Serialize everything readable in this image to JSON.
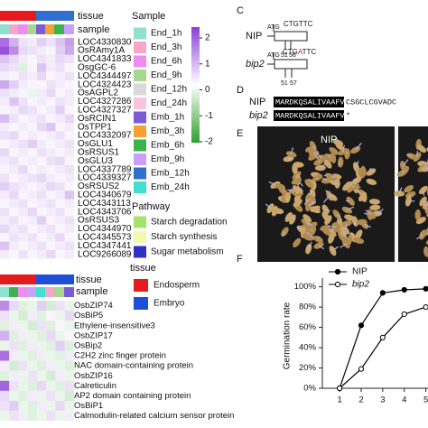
{
  "top_heatmap": {
    "tissue_label": "tissue",
    "sample_label": "sample",
    "rows": [
      "LOC4330830",
      "OsRAmy1A",
      "LOC4341833",
      "OsgGC-6",
      "LOC4344497",
      "LOC4324423",
      "OsAGPL2",
      "LOC4327286",
      "LOC4327327",
      "OsRCIN1",
      "OsTPP1",
      "LOC4332097",
      "OsGLU1",
      "OsRSUS1",
      "OsGLU3",
      "LOC4337789",
      "LOC4339327",
      "OsRSUS2",
      "LOC4340679",
      "LOC4343113",
      "LOC4343706",
      "OsRSUS3",
      "LOC4344970",
      "LOC4345573",
      "LOC4347441",
      "LOC9266089"
    ],
    "values": [
      [
        1.5,
        0.8,
        0.3,
        0.2,
        0.5,
        0.3,
        0.6,
        1.0
      ],
      [
        1.8,
        1.2,
        0.4,
        0.3,
        0.2,
        0.1,
        0.5,
        0.9
      ],
      [
        0.6,
        0.4,
        0.2,
        0.1,
        0.3,
        0.2,
        0.4,
        0.3
      ],
      [
        0.4,
        0.3,
        -0.3,
        0.1,
        0.6,
        0.2,
        0.3,
        0.1
      ],
      [
        0.2,
        0.1,
        0.3,
        0.2,
        0.4,
        0.1,
        0.2,
        0.3
      ],
      [
        0.9,
        0.5,
        0.2,
        0.1,
        0.1,
        0.3,
        0.2,
        0.1
      ],
      [
        0.3,
        0.2,
        0.1,
        -0.2,
        0.2,
        0.4,
        0.1,
        0.2
      ],
      [
        0.2,
        0.6,
        0.3,
        0.1,
        0.2,
        0.1,
        0.3,
        0.2
      ],
      [
        0.1,
        0.2,
        0.4,
        0.3,
        0.1,
        0.2,
        0.5,
        0.1
      ],
      [
        0.7,
        0.3,
        0.1,
        0.2,
        0.3,
        0.1,
        0.2,
        0.4
      ],
      [
        0.2,
        0.1,
        0.2,
        0.1,
        0.4,
        0.6,
        0.1,
        0.2
      ],
      [
        0.3,
        0.4,
        0.1,
        0.2,
        0.1,
        0.2,
        0.3,
        0.1
      ],
      [
        0.1,
        0.2,
        0.3,
        0.5,
        0.2,
        0.1,
        0.2,
        0.3
      ],
      [
        0.4,
        0.1,
        0.2,
        0.1,
        0.3,
        0.2,
        0.1,
        0.2
      ],
      [
        0.2,
        0.3,
        0.1,
        0.2,
        0.1,
        0.3,
        0.4,
        0.1
      ],
      [
        0.1,
        0.2,
        0.4,
        0.1,
        0.2,
        0.1,
        0.2,
        0.3
      ],
      [
        0.3,
        0.1,
        0.2,
        0.3,
        0.4,
        0.2,
        0.1,
        0.2
      ],
      [
        0.5,
        0.3,
        0.2,
        0.1,
        0.2,
        0.4,
        0.3,
        0.1
      ],
      [
        0.2,
        0.4,
        0.1,
        0.2,
        0.3,
        0.1,
        0.2,
        0.6
      ],
      [
        0.1,
        0.2,
        0.3,
        0.1,
        0.2,
        0.3,
        0.1,
        0.2
      ],
      [
        0.3,
        0.1,
        0.2,
        0.4,
        0.1,
        0.2,
        0.3,
        0.1
      ],
      [
        0.2,
        0.3,
        0.1,
        0.2,
        0.5,
        0.1,
        0.2,
        0.3
      ],
      [
        0.4,
        0.2,
        0.3,
        0.1,
        0.2,
        0.3,
        0.1,
        0.2
      ],
      [
        0.1,
        0.3,
        0.2,
        0.3,
        0.1,
        0.2,
        0.4,
        0.1
      ],
      [
        0.6,
        0.2,
        0.1,
        0.2,
        0.3,
        0.1,
        0.2,
        0.3
      ],
      [
        0.2,
        0.1,
        0.3,
        0.1,
        0.2,
        0.4,
        0.1,
        0.2
      ]
    ]
  },
  "sample_legend": {
    "title": "Sample",
    "items": [
      {
        "label": "End_1h",
        "color": "#8fe0cf"
      },
      {
        "label": "End_3h",
        "color": "#f7a6c9"
      },
      {
        "label": "End_6h",
        "color": "#f08cf0"
      },
      {
        "label": "End_9h",
        "color": "#a7d68e"
      },
      {
        "label": "End_12h",
        "color": "#d9d9d9"
      },
      {
        "label": "End_24h",
        "color": "#f9c4dc"
      },
      {
        "label": "Emb_1h",
        "color": "#7b5bd6"
      },
      {
        "label": "Emb_3h",
        "color": "#f5a030"
      },
      {
        "label": "Emb_6h",
        "color": "#3cb44b"
      },
      {
        "label": "Emb_9h",
        "color": "#c9a0ff"
      },
      {
        "label": "Emb_12h",
        "color": "#2f6fcf"
      },
      {
        "label": "Emb_24h",
        "color": "#40e0d0"
      }
    ],
    "scale_ticks": [
      2,
      1,
      0,
      -1,
      -2
    ]
  },
  "pathway_legend": {
    "title": "Pathway",
    "items": [
      {
        "label": "Starch degradation",
        "color": "#a6e36b"
      },
      {
        "label": "Starch synthesis",
        "color": "#f4f9b0"
      },
      {
        "label": "Sugar metabolism",
        "color": "#3030c8"
      }
    ]
  },
  "panel_c": {
    "letter": "C",
    "nip": {
      "name": "NIP",
      "start": "ATG",
      "seq": "CTGTTC",
      "pos_a": 51,
      "pos_b": 56
    },
    "bip2": {
      "name": "bip2",
      "start": "ATG",
      "seq_a": "CTG",
      "seq_mut": "A",
      "seq_b": "TTC",
      "pos_a": 51,
      "pos_b": 57
    }
  },
  "panel_d": {
    "letter": "D",
    "rows": [
      {
        "name": "NIP",
        "boxed": "MARDKQSALIVAAFVLL",
        "rest": "CSGCLCGVADC"
      },
      {
        "name": "bip2",
        "boxed": "MARDKQSALIVAAFVLL",
        "rest": "*"
      }
    ]
  },
  "panel_e": {
    "letter": "E",
    "label": "NIP"
  },
  "panel_f": {
    "letter": "F",
    "type": "line",
    "ylabel": "Germination rate",
    "x": [
      1,
      2,
      3,
      4,
      5
    ],
    "xlim": [
      0.2,
      5.1
    ],
    "xticks": [
      1,
      2,
      3,
      4,
      5
    ],
    "ylim": [
      0,
      105
    ],
    "yticks": [
      {
        "value": 0,
        "label": "0%"
      },
      {
        "value": 20,
        "label": "20%"
      },
      {
        "value": 40,
        "label": "40%"
      },
      {
        "value": 60,
        "label": "60%"
      },
      {
        "value": 80,
        "label": "80%"
      },
      {
        "value": 100,
        "label": "100%"
      }
    ],
    "series": [
      {
        "name": "NIP",
        "color": "#000000",
        "marker": "filled",
        "values": [
          0,
          62,
          94,
          97,
          98
        ]
      },
      {
        "name": "bip2",
        "color": "#000000",
        "marker": "open",
        "values": [
          0,
          19,
          50,
          73,
          80
        ]
      }
    ]
  },
  "bottom_heatmap": {
    "tissue_label": "tissue",
    "sample_label": "sample",
    "rows": [
      "OsbZIP74",
      "OsBiP5",
      "Ethylene-insensitive3",
      "OsbZIP17",
      "OsBip2",
      "C2H2 zinc finger protein",
      "NAC domain-containing protein",
      "OsbZIP16",
      "Calreticulin",
      "AP2 domain containing protein",
      "OsBiP1",
      "Calmodulin-related calcium sensor protein"
    ],
    "values": [
      [
        1.2,
        0.4,
        -0.3,
        -0.2,
        0.5,
        -0.4,
        0.3,
        -0.2
      ],
      [
        0.3,
        -0.2,
        -0.4,
        0.2,
        -0.3,
        0.1,
        -0.2,
        0.4
      ],
      [
        -0.3,
        0.2,
        -0.2,
        -0.4,
        0.3,
        -0.3,
        0.1,
        -0.2
      ],
      [
        0.8,
        -0.3,
        0.2,
        -0.2,
        -0.3,
        0.4,
        -0.2,
        0.1
      ],
      [
        -0.2,
        0.3,
        -0.3,
        0.2,
        -0.2,
        -0.3,
        0.5,
        -0.3
      ],
      [
        1.5,
        0.2,
        -0.2,
        -0.3,
        0.2,
        -0.2,
        -0.3,
        0.2
      ],
      [
        0.2,
        -0.4,
        0.3,
        -0.2,
        -0.3,
        0.2,
        -0.2,
        -0.3
      ],
      [
        -0.3,
        0.2,
        -0.2,
        0.3,
        -0.2,
        -0.4,
        0.2,
        -0.2
      ],
      [
        1.6,
        0.3,
        -0.2,
        -0.3,
        0.4,
        -0.2,
        -0.3,
        0.3
      ],
      [
        0.4,
        -0.2,
        -0.3,
        0.2,
        -0.2,
        0.3,
        -0.2,
        -0.4
      ],
      [
        0.3,
        0.5,
        -0.2,
        -0.3,
        0.2,
        -0.2,
        0.4,
        -0.2
      ],
      [
        -0.2,
        0.3,
        0.2,
        -0.3,
        -0.2,
        0.3,
        -0.2,
        0.2
      ]
    ]
  },
  "tissue_legend": {
    "title": "tissue",
    "items": [
      {
        "label": "Endosperm",
        "color": "#e41a1c"
      },
      {
        "label": "Embryo",
        "color": "#1f4fd8"
      }
    ]
  }
}
